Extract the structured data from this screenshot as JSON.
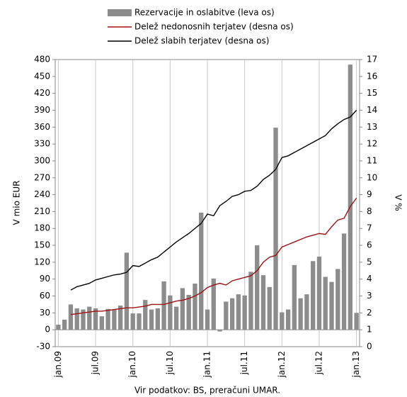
{
  "chart_data": {
    "type": "bar",
    "categories": [
      "jan.09",
      null,
      null,
      null,
      null,
      null,
      "jul.09",
      null,
      null,
      null,
      null,
      null,
      "jan.10",
      null,
      null,
      null,
      null,
      null,
      "jul.10",
      null,
      null,
      null,
      null,
      null,
      "jan.11",
      null,
      null,
      null,
      null,
      null,
      "jul.11",
      null,
      null,
      null,
      null,
      null,
      "jan.12",
      null,
      null,
      null,
      null,
      null,
      "jul.12",
      null,
      null,
      null,
      null,
      null,
      "jan.13"
    ],
    "series": [
      {
        "name": "Rezervacije in oslabitve (leva os)",
        "type": "bar",
        "color": "#8c8c8c",
        "values": [
          9,
          18,
          45,
          38,
          36,
          41,
          38,
          24,
          37,
          36,
          43,
          137,
          29,
          29,
          53,
          36,
          38,
          86,
          61,
          41,
          74,
          62,
          82,
          208,
          36,
          91,
          -3,
          50,
          56,
          63,
          61,
          103,
          150,
          97,
          76,
          359,
          31,
          36,
          115,
          56,
          63,
          122,
          130,
          94,
          85,
          108,
          171,
          471,
          30
        ]
      },
      {
        "name": "Delež nedonosnih terjatev (desna os)",
        "type": "line",
        "axis": "y2",
        "color": "#a01010",
        "values": [
          null,
          null,
          1.9,
          1.95,
          2.0,
          2.05,
          2.1,
          2.1,
          2.15,
          2.2,
          2.25,
          2.3,
          2.3,
          2.35,
          2.4,
          2.5,
          2.5,
          2.5,
          2.6,
          2.7,
          2.75,
          2.85,
          3.0,
          3.2,
          3.5,
          3.65,
          3.75,
          3.65,
          3.9,
          4.0,
          4.1,
          4.2,
          4.5,
          5.0,
          5.3,
          5.4,
          5.9,
          6.05,
          6.2,
          6.35,
          6.5,
          6.6,
          6.7,
          6.65,
          7.1,
          7.5,
          7.6,
          8.3,
          8.8
        ]
      },
      {
        "name": "Delež slabih terjatev (desna os)",
        "type": "line",
        "axis": "y2",
        "color": "#000000",
        "values": [
          null,
          null,
          3.35,
          3.55,
          3.65,
          3.75,
          3.95,
          4.05,
          4.15,
          4.25,
          4.3,
          4.4,
          4.8,
          4.75,
          4.95,
          5.15,
          5.3,
          5.6,
          5.9,
          6.2,
          6.45,
          6.7,
          7.0,
          7.3,
          7.85,
          7.75,
          8.35,
          8.6,
          8.9,
          9.0,
          9.2,
          9.25,
          9.5,
          9.9,
          10.15,
          10.5,
          11.2,
          11.3,
          11.5,
          11.7,
          11.9,
          12.1,
          12.3,
          12.5,
          12.9,
          13.2,
          13.45,
          13.6,
          14.0
        ]
      }
    ],
    "ylabel": "V mio EUR",
    "y2label": "V %",
    "ylim": [
      -30,
      480
    ],
    "yticks": [
      -30,
      0,
      30,
      60,
      90,
      120,
      150,
      180,
      210,
      240,
      270,
      300,
      330,
      360,
      390,
      420,
      450,
      480
    ],
    "y2lim": [
      0,
      17
    ],
    "y2ticks": [
      0,
      1,
      2,
      3,
      4,
      5,
      6,
      7,
      8,
      9,
      10,
      11,
      12,
      13,
      14,
      15,
      16,
      17
    ],
    "source": "Vir podatkov: BS, preračuni UMAR."
  }
}
